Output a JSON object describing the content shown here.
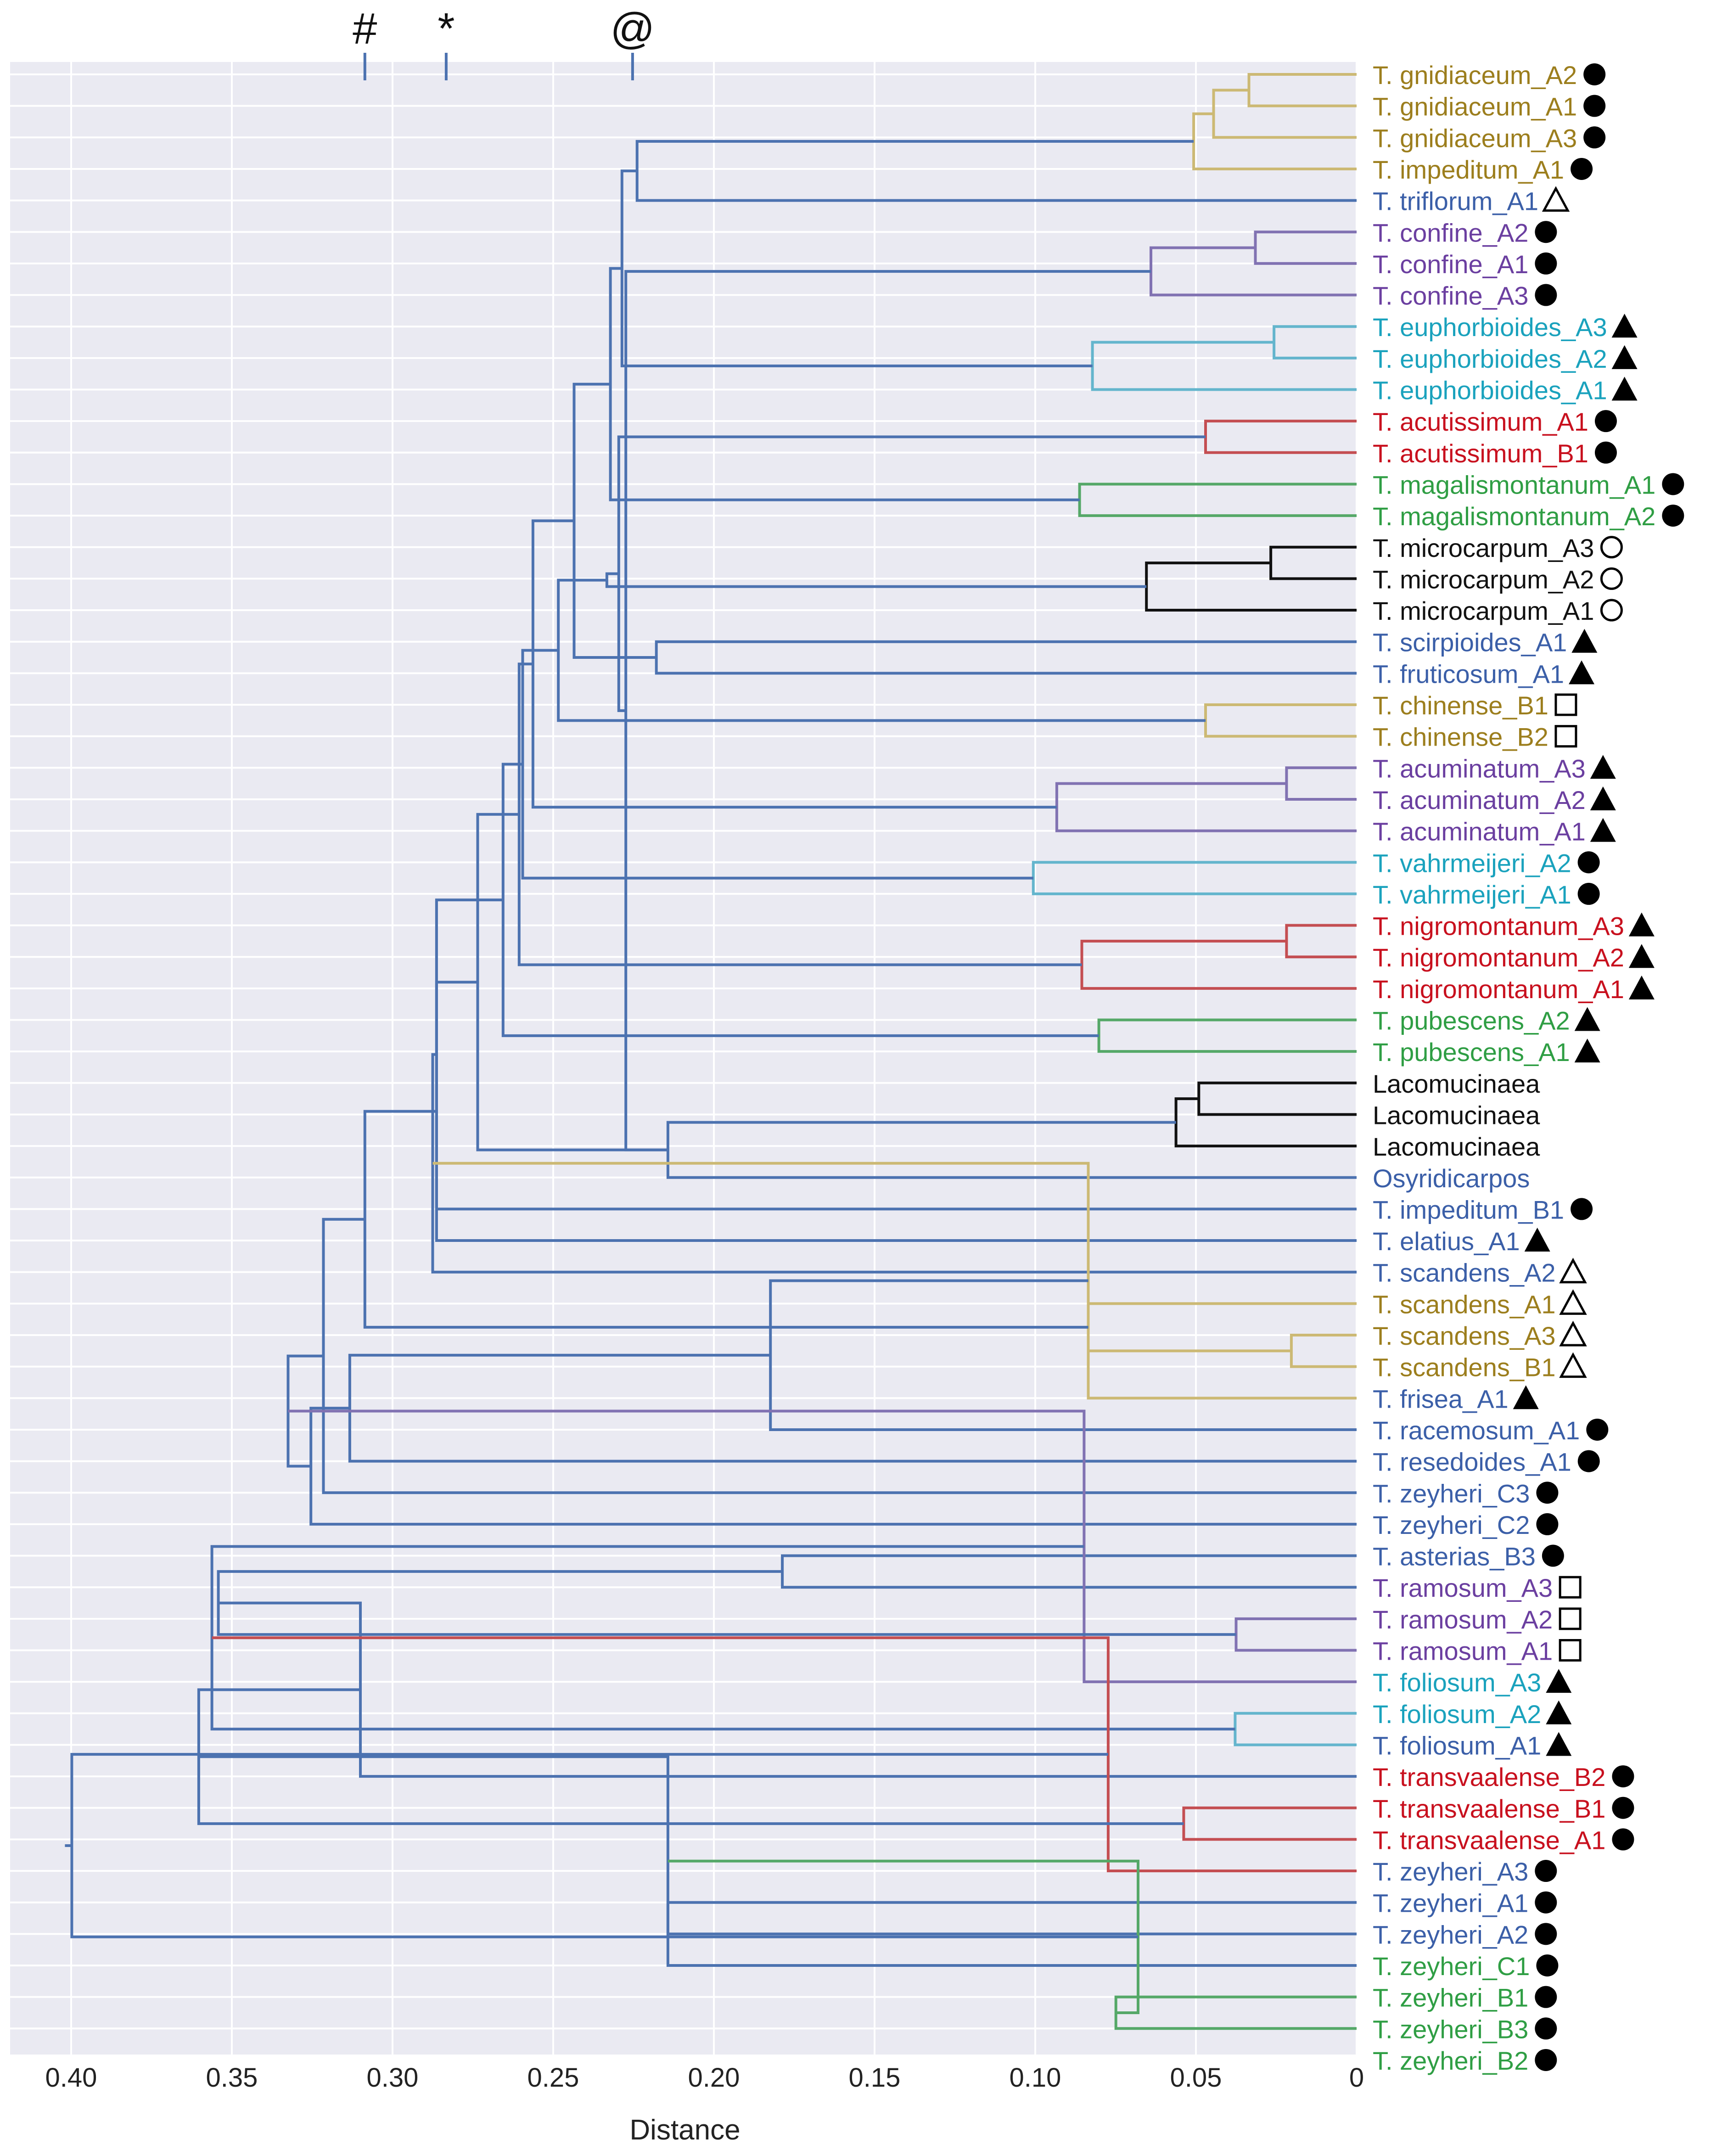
{
  "chart_data": {
    "type": "dendrogram",
    "title": "",
    "xlabel": "Distance",
    "ylabel": "",
    "x_axis_reversed": true,
    "xlim": [
      0.4176,
      0
    ],
    "xticks": [
      0.4,
      0.35,
      0.3,
      0.25,
      0.2,
      0.15,
      0.1,
      0.05,
      0
    ],
    "xtick_labels": [
      "0.40",
      "0.35",
      "0.30",
      "0.25",
      "0.20",
      "0.15",
      "0.10",
      "0.05",
      "0"
    ],
    "grid": true,
    "background": "#eaeaf2",
    "cut_markers": [
      {
        "label": "#",
        "distance": 0.3086
      },
      {
        "label": "*",
        "distance": 0.2833
      },
      {
        "label": "@",
        "distance": 0.2253
      }
    ],
    "leaves": [
      {
        "label": "T. gnidiaceum_A2",
        "color": "#9c7e1d",
        "marker": "filled-circle"
      },
      {
        "label": "T. gnidiaceum_A1",
        "color": "#9c7e1d",
        "marker": "filled-circle"
      },
      {
        "label": "T. gnidiaceum_A3",
        "color": "#9c7e1d",
        "marker": "filled-circle"
      },
      {
        "label": "T. impeditum_A1",
        "color": "#9c7e1d",
        "marker": "filled-circle"
      },
      {
        "label": "T. triflorum_A1",
        "color": "#3b5fa8",
        "marker": "open-triangle"
      },
      {
        "label": "T. confine_A2",
        "color": "#6b3fa0",
        "marker": "filled-circle"
      },
      {
        "label": "T. confine_A1",
        "color": "#6b3fa0",
        "marker": "filled-circle"
      },
      {
        "label": "T. confine_A3",
        "color": "#6b3fa0",
        "marker": "filled-circle"
      },
      {
        "label": "T. euphorbioides_A3",
        "color": "#1aa2bd",
        "marker": "filled-triangle"
      },
      {
        "label": "T. euphorbioides_A2",
        "color": "#1aa2bd",
        "marker": "filled-triangle"
      },
      {
        "label": "T. euphorbioides_A1",
        "color": "#1aa2bd",
        "marker": "filled-triangle"
      },
      {
        "label": "T. acutissimum_A1",
        "color": "#c8101e",
        "marker": "filled-circle"
      },
      {
        "label": "T. acutissimum_B1",
        "color": "#c8101e",
        "marker": "filled-circle"
      },
      {
        "label": "T. magalismontanum_A1",
        "color": "#2f9e44",
        "marker": "filled-circle"
      },
      {
        "label": "T. magalismontanum_A2",
        "color": "#2f9e44",
        "marker": "filled-circle"
      },
      {
        "label": "T. microcarpum_A3",
        "color": "#111111",
        "marker": "open-circle"
      },
      {
        "label": "T. microcarpum_A2",
        "color": "#111111",
        "marker": "open-circle"
      },
      {
        "label": "T. microcarpum_A1",
        "color": "#111111",
        "marker": "open-circle"
      },
      {
        "label": "T. scirpioides_A1",
        "color": "#3b5fa8",
        "marker": "filled-triangle"
      },
      {
        "label": "T. fruticosum_A1",
        "color": "#3b5fa8",
        "marker": "filled-triangle"
      },
      {
        "label": "T. chinense_B1",
        "color": "#9c7e1d",
        "marker": "open-square"
      },
      {
        "label": "T. chinense_B2",
        "color": "#9c7e1d",
        "marker": "open-square"
      },
      {
        "label": "T. acuminatum_A3",
        "color": "#6b3fa0",
        "marker": "filled-triangle"
      },
      {
        "label": "T. acuminatum_A2",
        "color": "#6b3fa0",
        "marker": "filled-triangle"
      },
      {
        "label": "T. acuminatum_A1",
        "color": "#6b3fa0",
        "marker": "filled-triangle"
      },
      {
        "label": "T. vahrmeijeri_A2",
        "color": "#1aa2bd",
        "marker": "filled-circle"
      },
      {
        "label": "T. vahrmeijeri_A1",
        "color": "#1aa2bd",
        "marker": "filled-circle"
      },
      {
        "label": "T. nigromontanum_A3",
        "color": "#c8101e",
        "marker": "filled-triangle"
      },
      {
        "label": "T. nigromontanum_A2",
        "color": "#c8101e",
        "marker": "filled-triangle"
      },
      {
        "label": "T. nigromontanum_A1",
        "color": "#c8101e",
        "marker": "filled-triangle"
      },
      {
        "label": "T. pubescens_A2",
        "color": "#2f9e44",
        "marker": "filled-triangle"
      },
      {
        "label": "T. pubescens_A1",
        "color": "#2f9e44",
        "marker": "filled-triangle"
      },
      {
        "label": "Lacomucinaea",
        "color": "#111111",
        "marker": ""
      },
      {
        "label": "Lacomucinaea",
        "color": "#111111",
        "marker": ""
      },
      {
        "label": "Lacomucinaea",
        "color": "#111111",
        "marker": ""
      },
      {
        "label": "Osyridicarpos",
        "color": "#3b5fa8",
        "marker": ""
      },
      {
        "label": "T. impeditum_B1",
        "color": "#3b5fa8",
        "marker": "filled-circle"
      },
      {
        "label": "T. elatius_A1",
        "color": "#3b5fa8",
        "marker": "filled-triangle"
      },
      {
        "label": "T. scandens_A2",
        "color": "#3b5fa8",
        "marker": "open-triangle"
      },
      {
        "label": "T. scandens_A1",
        "color": "#9c7e1d",
        "marker": "open-triangle"
      },
      {
        "label": "T. scandens_A3",
        "color": "#9c7e1d",
        "marker": "open-triangle"
      },
      {
        "label": "T. scandens_B1",
        "color": "#9c7e1d",
        "marker": "open-triangle"
      },
      {
        "label": "T. frisea_A1",
        "color": "#3b5fa8",
        "marker": "filled-triangle"
      },
      {
        "label": "T. racemosum_A1",
        "color": "#3b5fa8",
        "marker": "filled-circle"
      },
      {
        "label": "T. resedoides_A1",
        "color": "#3b5fa8",
        "marker": "filled-circle"
      },
      {
        "label": "T. zeyheri_C3",
        "color": "#3b5fa8",
        "marker": "filled-circle"
      },
      {
        "label": "T. zeyheri_C2",
        "color": "#3b5fa8",
        "marker": "filled-circle"
      },
      {
        "label": "T. asterias_B3",
        "color": "#3b5fa8",
        "marker": "filled-circle"
      },
      {
        "label": "T. ramosum_A3",
        "color": "#6b3fa0",
        "marker": "open-square"
      },
      {
        "label": "T. ramosum_A2",
        "color": "#6b3fa0",
        "marker": "open-square"
      },
      {
        "label": "T. ramosum_A1",
        "color": "#6b3fa0",
        "marker": "open-square"
      },
      {
        "label": "T. foliosum_A3",
        "color": "#1aa2bd",
        "marker": "filled-triangle"
      },
      {
        "label": "T. foliosum_A2",
        "color": "#1aa2bd",
        "marker": "filled-triangle"
      },
      {
        "label": "T. foliosum_A1",
        "color": "#3b5fa8",
        "marker": "filled-triangle"
      },
      {
        "label": "T. transvaalense_B2",
        "color": "#c8101e",
        "marker": "filled-circle"
      },
      {
        "label": "T. transvaalense_B1",
        "color": "#c8101e",
        "marker": "filled-circle"
      },
      {
        "label": "T. transvaalense_A1",
        "color": "#c8101e",
        "marker": "filled-circle"
      },
      {
        "label": "T. zeyheri_A3",
        "color": "#3b5fa8",
        "marker": "filled-circle"
      },
      {
        "label": "T. zeyheri_A1",
        "color": "#3b5fa8",
        "marker": "filled-circle"
      },
      {
        "label": "T. zeyheri_A2",
        "color": "#3b5fa8",
        "marker": "filled-circle"
      },
      {
        "label": "T. zeyheri_C1",
        "color": "#2f9e44",
        "marker": "filled-circle"
      },
      {
        "label": "T. zeyheri_B1",
        "color": "#2f9e44",
        "marker": "filled-circle"
      },
      {
        "label": "T. zeyheri_B3",
        "color": "#2f9e44",
        "marker": "filled-circle"
      },
      {
        "label": "T. zeyheri_B2",
        "color": "#2f9e44",
        "marker": "filled-circle"
      }
    ],
    "link_colors": {
      "default": "#4c72b0",
      "gold": "#ccb974",
      "purple": "#8172b2",
      "cyan": "#64b5cd",
      "red": "#c44e52",
      "green": "#55a868",
      "black": "#111111"
    },
    "merges": [
      {
        "a": "L0",
        "b": "L1",
        "d": 0.0335,
        "color": "gold"
      },
      {
        "a": "N0",
        "b": "L2",
        "d": 0.0445,
        "color": "gold"
      },
      {
        "a": "N1",
        "b": "L3",
        "d": 0.0507,
        "color": "gold"
      },
      {
        "a": "L6",
        "b": "L5",
        "d": 0.0315,
        "color": "purple"
      },
      {
        "a": "N3",
        "b": "L7",
        "d": 0.064,
        "color": "purple"
      },
      {
        "a": "L8",
        "b": "L9",
        "d": 0.0257,
        "color": "cyan"
      },
      {
        "a": "N5",
        "b": "L10",
        "d": 0.0822,
        "color": "cyan"
      },
      {
        "a": "L11",
        "b": "L12",
        "d": 0.047,
        "color": "red"
      },
      {
        "a": "L13",
        "b": "L14",
        "d": 0.0862,
        "color": "green"
      },
      {
        "a": "L15",
        "b": "L16",
        "d": 0.0267,
        "color": "black"
      },
      {
        "a": "N9",
        "b": "L17",
        "d": 0.0654,
        "color": "black"
      },
      {
        "a": "L18",
        "b": "L19",
        "d": 0.2179,
        "color": "default"
      },
      {
        "a": "L20",
        "b": "L21",
        "d": 0.047,
        "color": "gold"
      },
      {
        "a": "L22",
        "b": "L23",
        "d": 0.0218,
        "color": "purple"
      },
      {
        "a": "N13",
        "b": "L24",
        "d": 0.0933,
        "color": "purple"
      },
      {
        "a": "L25",
        "b": "L26",
        "d": 0.1006,
        "color": "cyan"
      },
      {
        "a": "L27",
        "b": "L28",
        "d": 0.0218,
        "color": "red"
      },
      {
        "a": "N16",
        "b": "L29",
        "d": 0.0855,
        "color": "red"
      },
      {
        "a": "L30",
        "b": "L31",
        "d": 0.0802,
        "color": "green"
      },
      {
        "a": "L32",
        "b": "L33",
        "d": 0.0491,
        "color": "black"
      },
      {
        "a": "N19",
        "b": "L34",
        "d": 0.0562,
        "color": "black"
      },
      {
        "a": "N20",
        "b": "L35",
        "d": 0.2143,
        "color": "default"
      },
      {
        "a": "N2",
        "b": "L4",
        "d": 0.2239,
        "color": "default"
      },
      {
        "a": "N21",
        "b": "N4",
        "d": 0.2274,
        "color": "default"
      },
      {
        "a": "N22",
        "b": "N6",
        "d": 0.2286,
        "color": "default"
      },
      {
        "a": "N23",
        "b": "N7",
        "d": 0.2296,
        "color": "default"
      },
      {
        "a": "N24",
        "b": "N8",
        "d": 0.2322,
        "color": "default"
      },
      {
        "a": "N25",
        "b": "N10",
        "d": 0.2333,
        "color": "default"
      },
      {
        "a": "N26",
        "b": "N11",
        "d": 0.2435,
        "color": "default"
      },
      {
        "a": "N27",
        "b": "N12",
        "d": 0.2484,
        "color": "default"
      },
      {
        "a": "N28",
        "b": "N14",
        "d": 0.2563,
        "color": "default"
      },
      {
        "a": "N29",
        "b": "N15",
        "d": 0.2595,
        "color": "default"
      },
      {
        "a": "N30",
        "b": "N17",
        "d": 0.2606,
        "color": "default"
      },
      {
        "a": "N31",
        "b": "N18",
        "d": 0.2656,
        "color": "default"
      },
      {
        "a": "N32",
        "b": "N21x",
        "d": 0.2735,
        "color": "default"
      },
      {
        "a": "N33",
        "b": "L36",
        "d": 0.2863,
        "color": "default"
      },
      {
        "a": "N34",
        "b": "L37",
        "d": 0.2863,
        "color": "default"
      },
      {
        "a": "N35",
        "b": "L38",
        "d": 0.2875,
        "color": "default"
      },
      {
        "a": "L40",
        "b": "L41",
        "d": 0.0203,
        "color": "gold"
      },
      {
        "a": "N37",
        "b": "L42",
        "d": 0.0835,
        "color": "gold"
      },
      {
        "a": "N38",
        "b": "L39",
        "d": 0.0835,
        "color": "gold"
      },
      {
        "a": "N39",
        "b": "L43",
        "d": 0.1824,
        "color": "default"
      },
      {
        "a": "N36",
        "b": "N40",
        "d": 0.3086,
        "color": "default"
      },
      {
        "a": "N41",
        "b": "L44",
        "d": 0.3133,
        "color": "default"
      },
      {
        "a": "N42",
        "b": "L45",
        "d": 0.3215,
        "color": "default"
      },
      {
        "a": "N43",
        "b": "L46",
        "d": 0.3254,
        "color": "default"
      },
      {
        "a": "L47",
        "b": "L48",
        "d": 0.1787,
        "color": "default"
      },
      {
        "a": "N44",
        "b": "N45",
        "d": 0.3325,
        "color": "default"
      },
      {
        "a": "L49",
        "b": "L50",
        "d": 0.0375,
        "color": "purple"
      },
      {
        "a": "N47",
        "b": "L51",
        "d": 0.0848,
        "color": "purple"
      },
      {
        "a": "N46",
        "b": "N48",
        "d": 0.3542,
        "color": "default"
      },
      {
        "a": "L52",
        "b": "L53",
        "d": 0.0378,
        "color": "cyan"
      },
      {
        "a": "N50",
        "b": "L54",
        "d": 0.31,
        "color": "default"
      },
      {
        "a": "N49",
        "b": "N51",
        "d": 0.3562,
        "color": "default"
      },
      {
        "a": "L55",
        "b": "L56",
        "d": 0.0538,
        "color": "red"
      },
      {
        "a": "N53",
        "b": "L57",
        "d": 0.0773,
        "color": "red"
      },
      {
        "a": "N52",
        "b": "N54",
        "d": 0.3603,
        "color": "default"
      },
      {
        "a": "L58",
        "b": "L59",
        "d": 0.2143,
        "color": "default"
      },
      {
        "a": "N56",
        "b": "L60",
        "d": 0.2143,
        "color": "default"
      },
      {
        "a": "L61",
        "b": "L62",
        "d": 0.0749,
        "color": "green"
      },
      {
        "a": "L63",
        "b": "L64",
        "d": 0.0316,
        "color": "green"
      },
      {
        "a": "N58",
        "b": "N59",
        "d": 0.068,
        "color": "green"
      },
      {
        "a": "N57",
        "b": "N60",
        "d": 0.3178,
        "color": "default"
      },
      {
        "a": "N55",
        "b": "N61",
        "d": 0.3998,
        "color": "default"
      }
    ]
  }
}
